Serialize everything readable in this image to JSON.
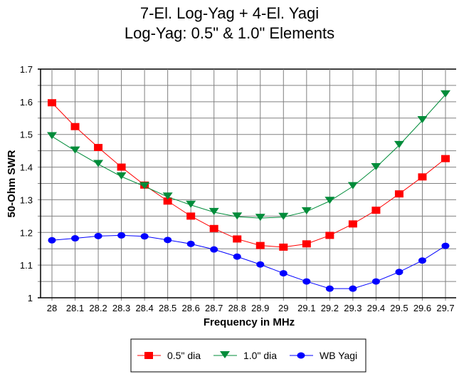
{
  "chart_data": {
    "type": "line",
    "title": "7-El. Log-Yag + 4-El. Yagi",
    "subtitle": "Log-Yag:  0.5\" & 1.0\" Elements",
    "xlabel": "Frequency in MHz",
    "ylabel": "50-Ohm SWR",
    "x": [
      28,
      28.1,
      28.2,
      28.3,
      28.4,
      28.5,
      28.6,
      28.7,
      28.8,
      28.9,
      29,
      29.1,
      29.2,
      29.3,
      29.4,
      29.5,
      29.6,
      29.7
    ],
    "x_tick_labels": [
      "28",
      "28.1",
      "28.2",
      "28.3",
      "28.4",
      "28.5",
      "28.6",
      "28.7",
      "28.8",
      "28.9",
      "29",
      "29.1",
      "29.2",
      "29.3",
      "29.4",
      "29.5",
      "29.6",
      "29.7"
    ],
    "y_tick_labels": [
      "1",
      "1.1",
      "1.2",
      "1.3",
      "1.4",
      "1.5",
      "1.6",
      "1.7"
    ],
    "ylim": [
      1.0,
      1.7
    ],
    "grid": true,
    "legend_position": "bottom",
    "series": [
      {
        "name": "0.5\" dia",
        "color": "#ff0000",
        "marker": "square",
        "values": [
          1.597,
          1.524,
          1.46,
          1.4,
          1.345,
          1.296,
          1.25,
          1.212,
          1.18,
          1.16,
          1.155,
          1.165,
          1.191,
          1.226,
          1.268,
          1.318,
          1.37,
          1.426
        ]
      },
      {
        "name": "1.0\" dia",
        "color": "#008c3a",
        "marker": "triangle-down",
        "values": [
          1.494,
          1.45,
          1.409,
          1.371,
          1.341,
          1.309,
          1.284,
          1.262,
          1.248,
          1.244,
          1.247,
          1.264,
          1.296,
          1.341,
          1.399,
          1.467,
          1.543,
          1.622
        ]
      },
      {
        "name": "WB Yagi",
        "color": "#0000ff",
        "marker": "circle",
        "values": [
          1.176,
          1.182,
          1.189,
          1.191,
          1.188,
          1.177,
          1.165,
          1.148,
          1.126,
          1.102,
          1.075,
          1.05,
          1.028,
          1.028,
          1.05,
          1.079,
          1.114,
          1.159
        ]
      }
    ]
  }
}
